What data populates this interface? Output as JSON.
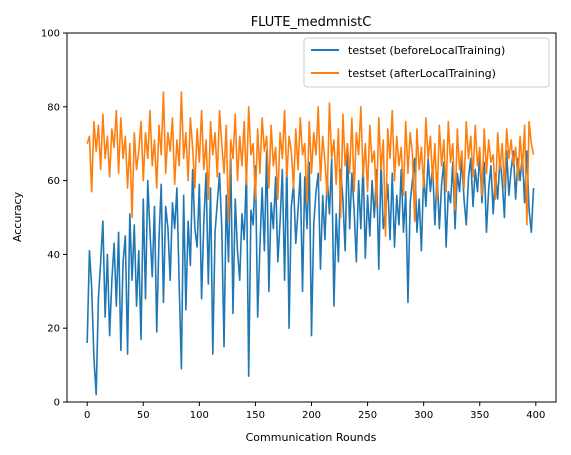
{
  "chart_data": {
    "type": "line",
    "title": "FLUTE_medmnistC",
    "xlabel": "Communication Rounds",
    "ylabel": "Accuracy",
    "xlim": [
      -18,
      418
    ],
    "ylim": [
      0,
      100
    ],
    "xticks": [
      0,
      50,
      100,
      150,
      200,
      250,
      300,
      350,
      400
    ],
    "yticks": [
      0,
      20,
      40,
      60,
      80,
      100
    ],
    "grid": false,
    "legend_position": "top-right",
    "series": [
      {
        "name": "testset (beforeLocalTraining)",
        "color": "#1f77b4",
        "x": [
          0,
          2,
          4,
          6,
          8,
          10,
          12,
          14,
          16,
          18,
          20,
          22,
          24,
          26,
          28,
          30,
          32,
          34,
          36,
          38,
          40,
          42,
          44,
          46,
          48,
          50,
          52,
          54,
          56,
          58,
          60,
          62,
          64,
          66,
          68,
          70,
          72,
          74,
          76,
          78,
          80,
          82,
          84,
          86,
          88,
          90,
          92,
          94,
          96,
          98,
          100,
          102,
          104,
          106,
          108,
          110,
          112,
          114,
          116,
          118,
          120,
          122,
          124,
          126,
          128,
          130,
          132,
          134,
          136,
          138,
          140,
          142,
          144,
          146,
          148,
          150,
          152,
          154,
          156,
          158,
          160,
          162,
          164,
          166,
          168,
          170,
          172,
          174,
          176,
          178,
          180,
          182,
          184,
          186,
          188,
          190,
          192,
          194,
          196,
          198,
          200,
          202,
          204,
          206,
          208,
          210,
          212,
          214,
          216,
          218,
          220,
          222,
          224,
          226,
          228,
          230,
          232,
          234,
          236,
          238,
          240,
          242,
          244,
          246,
          248,
          250,
          252,
          254,
          256,
          258,
          260,
          262,
          264,
          266,
          268,
          270,
          272,
          274,
          276,
          278,
          280,
          282,
          284,
          286,
          288,
          290,
          292,
          294,
          296,
          298,
          300,
          302,
          304,
          306,
          308,
          310,
          312,
          314,
          316,
          318,
          320,
          322,
          324,
          326,
          328,
          330,
          332,
          334,
          336,
          338,
          340,
          342,
          344,
          346,
          348,
          350,
          352,
          354,
          356,
          358,
          360,
          362,
          364,
          366,
          368,
          370,
          372,
          374,
          376,
          378,
          380,
          382,
          384,
          386,
          388,
          390,
          392,
          394,
          396,
          398
        ],
        "y": [
          16,
          41,
          31,
          12,
          2,
          28,
          38,
          49,
          23,
          40,
          18,
          33,
          43,
          26,
          46,
          14,
          38,
          45,
          13,
          51,
          33,
          48,
          26,
          41,
          17,
          55,
          28,
          60,
          46,
          34,
          53,
          19,
          44,
          59,
          27,
          53,
          47,
          33,
          54,
          47,
          58,
          32,
          9,
          56,
          25,
          49,
          37,
          63,
          47,
          42,
          59,
          28,
          49,
          62,
          32,
          58,
          13,
          46,
          54,
          62,
          47,
          15,
          56,
          38,
          66,
          24,
          55,
          41,
          33,
          51,
          44,
          63,
          7,
          52,
          48,
          64,
          23,
          42,
          58,
          41,
          68,
          30,
          54,
          47,
          61,
          38,
          49,
          63,
          33,
          65,
          20,
          53,
          59,
          43,
          52,
          62,
          30,
          61,
          47,
          65,
          18,
          48,
          57,
          62,
          36,
          56,
          44,
          61,
          51,
          66,
          26,
          51,
          38,
          63,
          55,
          41,
          70,
          47,
          62,
          52,
          38,
          60,
          47,
          65,
          39,
          56,
          45,
          60,
          50,
          63,
          36,
          65,
          47,
          52,
          59,
          44,
          62,
          42,
          56,
          48,
          63,
          46,
          57,
          27,
          54,
          60,
          66,
          46,
          55,
          41,
          62,
          53,
          66,
          57,
          64,
          48,
          62,
          47,
          59,
          65,
          42,
          57,
          54,
          65,
          47,
          62,
          57,
          66,
          55,
          48,
          61,
          66,
          53,
          63,
          57,
          67,
          54,
          65,
          46,
          58,
          64,
          51,
          62,
          55,
          66,
          60,
          50,
          68,
          56,
          63,
          68,
          55,
          66,
          60,
          67,
          54,
          68,
          52,
          46,
          58
        ]
      },
      {
        "name": "testset (afterLocalTraining)",
        "color": "#ff7f0e",
        "x": [
          0,
          2,
          4,
          6,
          8,
          10,
          12,
          14,
          16,
          18,
          20,
          22,
          24,
          26,
          28,
          30,
          32,
          34,
          36,
          38,
          40,
          42,
          44,
          46,
          48,
          50,
          52,
          54,
          56,
          58,
          60,
          62,
          64,
          66,
          68,
          70,
          72,
          74,
          76,
          78,
          80,
          82,
          84,
          86,
          88,
          90,
          92,
          94,
          96,
          98,
          100,
          102,
          104,
          106,
          108,
          110,
          112,
          114,
          116,
          118,
          120,
          122,
          124,
          126,
          128,
          130,
          132,
          134,
          136,
          138,
          140,
          142,
          144,
          146,
          148,
          150,
          152,
          154,
          156,
          158,
          160,
          162,
          164,
          166,
          168,
          170,
          172,
          174,
          176,
          178,
          180,
          182,
          184,
          186,
          188,
          190,
          192,
          194,
          196,
          198,
          200,
          202,
          204,
          206,
          208,
          210,
          212,
          214,
          216,
          218,
          220,
          222,
          224,
          226,
          228,
          230,
          232,
          234,
          236,
          238,
          240,
          242,
          244,
          246,
          248,
          250,
          252,
          254,
          256,
          258,
          260,
          262,
          264,
          266,
          268,
          270,
          272,
          274,
          276,
          278,
          280,
          282,
          284,
          286,
          288,
          290,
          292,
          294,
          296,
          298,
          300,
          302,
          304,
          306,
          308,
          310,
          312,
          314,
          316,
          318,
          320,
          322,
          324,
          326,
          328,
          330,
          332,
          334,
          336,
          338,
          340,
          342,
          344,
          346,
          348,
          350,
          352,
          354,
          356,
          358,
          360,
          362,
          364,
          366,
          368,
          370,
          372,
          374,
          376,
          378,
          380,
          382,
          384,
          386,
          388,
          390,
          392,
          394,
          396,
          398
        ],
        "y": [
          70,
          72,
          57,
          76,
          68,
          75,
          63,
          78,
          66,
          72,
          61,
          74,
          69,
          79,
          62,
          77,
          66,
          72,
          58,
          70,
          50,
          73,
          63,
          68,
          76,
          60,
          73,
          66,
          79,
          64,
          71,
          58,
          75,
          67,
          84,
          62,
          73,
          68,
          77,
          59,
          71,
          64,
          84,
          66,
          73,
          60,
          77,
          69,
          58,
          74,
          65,
          79,
          63,
          71,
          55,
          76,
          67,
          73,
          61,
          79,
          70,
          62,
          75,
          49,
          71,
          66,
          78,
          60,
          72,
          64,
          76,
          59,
          80,
          67,
          70,
          55,
          74,
          62,
          77,
          68,
          72,
          58,
          75,
          64,
          69,
          55,
          73,
          66,
          79,
          61,
          72,
          68,
          58,
          74,
          63,
          77,
          67,
          70,
          54,
          76,
          62,
          73,
          67,
          80,
          60,
          72,
          65,
          56,
          81,
          66,
          71,
          59,
          74,
          50,
          78,
          64,
          70,
          62,
          77,
          57,
          73,
          67,
          80,
          61,
          70,
          57,
          75,
          65,
          68,
          53,
          77,
          63,
          71,
          45,
          74,
          66,
          79,
          60,
          72,
          64,
          69,
          56,
          76,
          62,
          73,
          67,
          49,
          74,
          63,
          69,
          58,
          77,
          66,
          72,
          60,
          70,
          55,
          75,
          64,
          71,
          57,
          76,
          65,
          70,
          52,
          74,
          63,
          68,
          58,
          76,
          66,
          72,
          61,
          75,
          64,
          69,
          56,
          74,
          62,
          71,
          65,
          67,
          55,
          73,
          63,
          70,
          58,
          74,
          66,
          71,
          64,
          69,
          60,
          72,
          63,
          75,
          48,
          76,
          70,
          67
        ]
      }
    ]
  }
}
